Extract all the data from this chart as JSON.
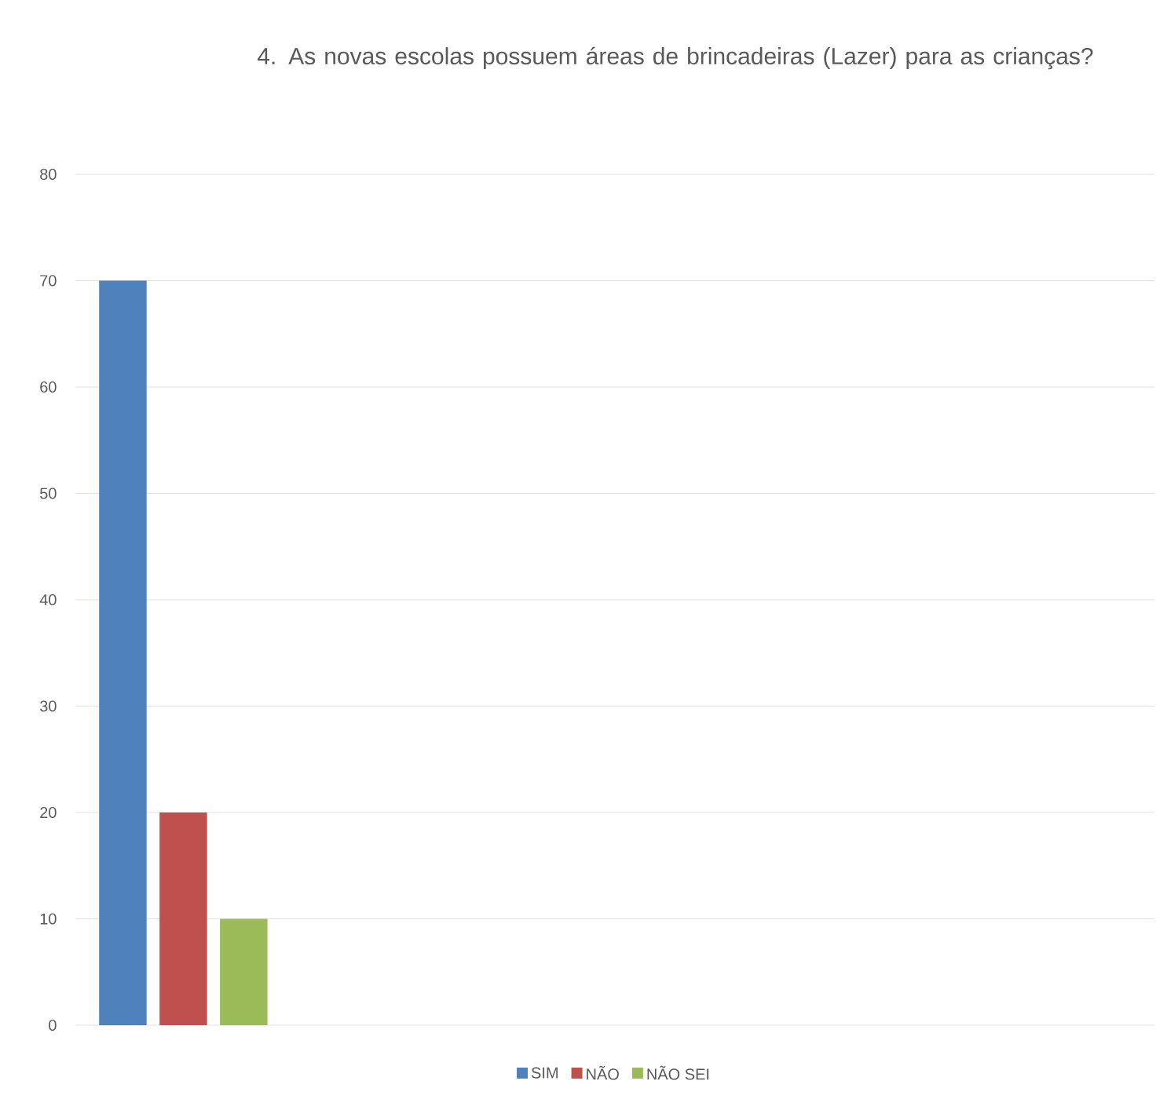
{
  "chart_data": {
    "type": "bar",
    "title": "4. As novas escolas possuem áreas de brincadeiras (Lazer) para as crianças?",
    "categories": [
      null,
      null,
      null,
      null,
      null
    ],
    "series": [
      {
        "name": "SIM",
        "color": "#4f81bd",
        "values": [
          70,
          null,
          null,
          null,
          null
        ]
      },
      {
        "name": "NÃO",
        "color": "#c0504d",
        "values": [
          20,
          null,
          null,
          null,
          null
        ]
      },
      {
        "name": "NÃO SEI",
        "color": "#9bbb59",
        "values": [
          10,
          null,
          null,
          null,
          null
        ]
      }
    ],
    "ylim": [
      0,
      80
    ],
    "yticks": [
      0,
      10,
      20,
      30,
      40,
      50,
      60,
      70,
      80
    ],
    "grid": "y",
    "legend": "bottom"
  }
}
